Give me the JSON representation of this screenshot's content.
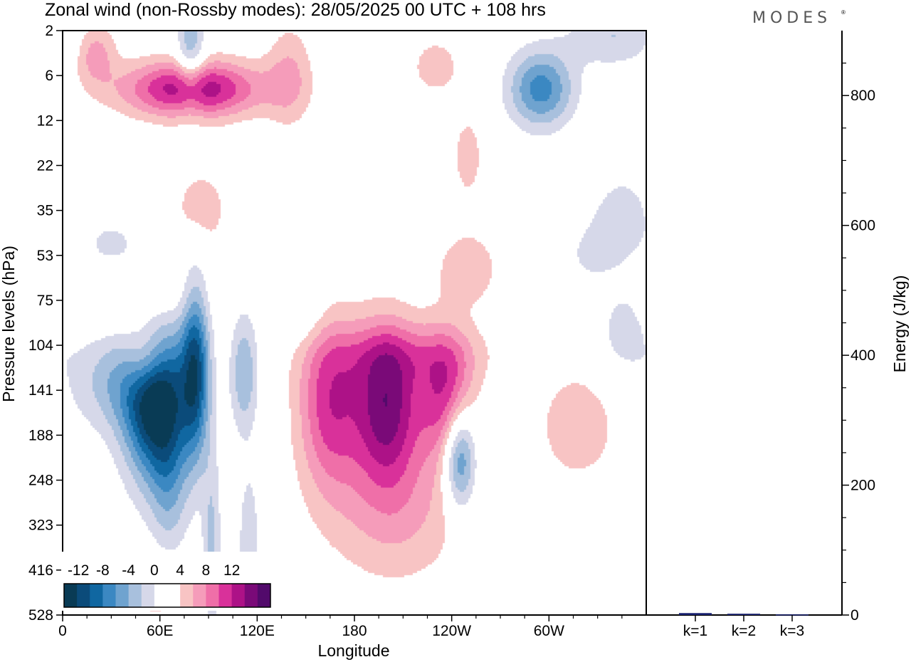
{
  "title": "Zonal wind (non-Rossby modes):  28/05/2025  00 UTC  + 108 hrs",
  "brand": "MODES",
  "brand_mark": "®",
  "colors": {
    "positive": [
      "#ffffff",
      "#f8c4c4",
      "#f59cba",
      "#ef6fa8",
      "#d9319a",
      "#ad1287",
      "#7a0a78",
      "#520a6b"
    ],
    "negative": [
      "#ffffff",
      "#d6d8e9",
      "#a8c0dd",
      "#6fa3cf",
      "#3b88c2",
      "#1067a1",
      "#0b4b7a",
      "#093b55"
    ],
    "bar": "#1a2370"
  },
  "chart_data": [
    {
      "type": "heatmap",
      "title": "Zonal wind (non-Rossby modes):  28/05/2025  00 UTC  + 108 hrs",
      "xlabel": "Longitude",
      "ylabel": "Pressure levels (hPa)",
      "xticks": [
        "0",
        "60E",
        "120E",
        "180",
        "120W",
        "60W"
      ],
      "xtick_values": [
        0,
        60,
        120,
        180,
        240,
        300
      ],
      "xlim": [
        0,
        360
      ],
      "yticks": [
        "2",
        "6",
        "12",
        "22",
        "35",
        "53",
        "75",
        "104",
        "141",
        "188",
        "248",
        "323",
        "416",
        "528"
      ],
      "colorbar_labels": [
        "-12",
        "-8",
        "-4",
        "0",
        "4",
        "8",
        "12"
      ],
      "contour_levels": [
        -14,
        -12,
        -10,
        -8,
        -6,
        -4,
        -2,
        0,
        2,
        4,
        6,
        8,
        10,
        12,
        14
      ],
      "features": [
        {
          "lon": 58,
          "level_index": 8.2,
          "value": -16,
          "lon_width": 14,
          "level_width": 1.3
        },
        {
          "lon": 82,
          "level_index": 7.5,
          "value": -11,
          "lon_width": 6,
          "level_width": 1.4
        },
        {
          "lon": 35,
          "level_index": 7.8,
          "value": -5,
          "lon_width": 22,
          "level_width": 0.8
        },
        {
          "lon": 66,
          "level_index": 10.2,
          "value": -4,
          "lon_width": 8,
          "level_width": 1.3
        },
        {
          "lon": 92,
          "level_index": 11.5,
          "value": -4.5,
          "lon_width": 4,
          "level_width": 1.5
        },
        {
          "lon": 112,
          "level_index": 7.6,
          "value": -6,
          "lon_width": 6,
          "level_width": 0.9
        },
        {
          "lon": 115,
          "level_index": 11.5,
          "value": -3.5,
          "lon_width": 5,
          "level_width": 1.3
        },
        {
          "lon": 245,
          "level_index": 9.5,
          "value": -10,
          "lon_width": 7,
          "level_width": 0.8
        },
        {
          "lon": 295,
          "level_index": 1.3,
          "value": -9,
          "lon_width": 14,
          "level_width": 0.6
        },
        {
          "lon": 79,
          "level_index": 0.5,
          "value": -6,
          "lon_width": 6,
          "level_width": 0.8
        },
        {
          "lon": 345,
          "level_index": 4.3,
          "value": -3.5,
          "lon_width": 14,
          "level_width": 0.8
        },
        {
          "lon": 345,
          "level_index": 6.4,
          "value": -4,
          "lon_width": 12,
          "level_width": 0.8
        },
        {
          "lon": 328,
          "level_index": 5.1,
          "value": -3,
          "lon_width": 14,
          "level_width": 0.6
        },
        {
          "lon": 30,
          "level_index": 4.8,
          "value": -2.5,
          "lon_width": 14,
          "level_width": 0.5
        },
        {
          "lon": 148,
          "level_index": 6.1,
          "value": -2.5,
          "lon_width": 10,
          "level_width": 0.7
        },
        {
          "lon": 340,
          "level_index": 0.1,
          "value": -4,
          "lon_width": 20,
          "level_width": 0.5
        },
        {
          "lon": 52,
          "level_index": 7.3,
          "value": 8,
          "lon_width": 10,
          "level_width": 0.6
        },
        {
          "lon": 80,
          "level_index": 1.3,
          "value": 12,
          "lon_width": 30,
          "level_width": 0.45
        },
        {
          "lon": 20,
          "level_index": 0.5,
          "value": 5,
          "lon_width": 9,
          "level_width": 0.5
        },
        {
          "lon": 140,
          "level_index": 1.0,
          "value": 4,
          "lon_width": 10,
          "level_width": 0.8
        },
        {
          "lon": 165,
          "level_index": 8.3,
          "value": 9,
          "lon_width": 14,
          "level_width": 1.3
        },
        {
          "lon": 200,
          "level_index": 8.3,
          "value": 12.5,
          "lon_width": 14,
          "level_width": 1.2
        },
        {
          "lon": 236,
          "level_index": 8.1,
          "value": 9,
          "lon_width": 12,
          "level_width": 1.0
        },
        {
          "lon": 205,
          "level_index": 10.6,
          "value": 4.5,
          "lon_width": 30,
          "level_width": 1.2
        },
        {
          "lon": 210,
          "level_index": 7.2,
          "value": 3.5,
          "lon_width": 40,
          "level_width": 0.5
        },
        {
          "lon": 318,
          "level_index": 8.8,
          "value": 3.5,
          "lon_width": 18,
          "level_width": 0.9
        },
        {
          "lon": 250,
          "level_index": 5.3,
          "value": 3.5,
          "lon_width": 14,
          "level_width": 0.6
        },
        {
          "lon": 45,
          "level_index": 6.0,
          "value": 3.5,
          "lon_width": 25,
          "level_width": 0.5
        },
        {
          "lon": 85,
          "level_index": 4.0,
          "value": 3,
          "lon_width": 14,
          "level_width": 0.8
        },
        {
          "lon": 340,
          "level_index": 5.5,
          "value": 3,
          "lon_width": 14,
          "level_width": 0.8
        },
        {
          "lon": 60,
          "level_index": 12.5,
          "value": 3,
          "lon_width": 14,
          "level_width": 0.6
        },
        {
          "lon": 250,
          "level_index": 2.8,
          "value": 2.8,
          "lon_width": 8,
          "level_width": 0.8
        },
        {
          "lon": 230,
          "level_index": 0.8,
          "value": 3,
          "lon_width": 12,
          "level_width": 0.5
        }
      ]
    },
    {
      "type": "bar",
      "ylabel": "Energy (J/kg)",
      "ylim": [
        0,
        900
      ],
      "yticks": [
        "0",
        "200",
        "400",
        "600",
        "800"
      ],
      "categories": [
        "k=1",
        "k=2",
        "k=3"
      ],
      "values": [
        3,
        2,
        1
      ]
    }
  ]
}
